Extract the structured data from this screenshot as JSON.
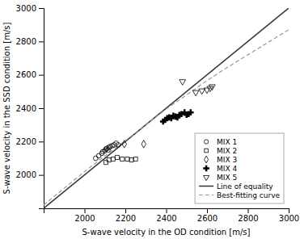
{
  "chart_data": {
    "type": "scatter",
    "xlabel": "S-wave velocity in the OD condition [m/s]",
    "ylabel": "S-wave velocity in the SSD condition [m/s]",
    "xlim": [
      1800,
      3000
    ],
    "ylim": [
      1800,
      3000
    ],
    "xticks": [
      2000,
      2200,
      2400,
      2600,
      2800,
      3000
    ],
    "yticks": [
      2000,
      2200,
      2400,
      2600,
      2800,
      3000
    ],
    "grid": false,
    "legend": "lower right",
    "series": [
      {
        "name": "MIX 1",
        "type": "scatter",
        "marker": "circle",
        "color": "#000000",
        "x": [
          2055,
          2070,
          2085,
          2090,
          2100,
          2105,
          2110,
          2115,
          2120,
          2125,
          2135,
          2145,
          2155,
          2165
        ],
        "values": [
          2100,
          2115,
          2130,
          2140,
          2145,
          2155,
          2160,
          2150,
          2165,
          2170,
          2175,
          2180,
          2190,
          2180
        ]
      },
      {
        "name": "MIX 2",
        "type": "scatter",
        "marker": "square",
        "color": "#000000",
        "x": [
          2105,
          2120,
          2140,
          2160,
          2185,
          2210,
          2230,
          2250
        ],
        "values": [
          2075,
          2090,
          2095,
          2105,
          2095,
          2095,
          2090,
          2095
        ]
      },
      {
        "name": "MIX 3",
        "type": "scatter",
        "marker": "diamond",
        "color": "#000000",
        "x": [
          2195,
          2290
        ],
        "values": [
          2185,
          2185
        ]
      },
      {
        "name": "MIX 4",
        "type": "scatter",
        "marker": "plus",
        "color": "#000000",
        "x": [
          2385,
          2395,
          2405,
          2415,
          2425,
          2435,
          2445,
          2455,
          2465,
          2475,
          2490,
          2500,
          2510,
          2520
        ],
        "values": [
          2320,
          2330,
          2340,
          2345,
          2340,
          2355,
          2350,
          2345,
          2360,
          2365,
          2375,
          2360,
          2365,
          2375
        ]
      },
      {
        "name": "MIX 5",
        "type": "scatter",
        "marker": "triangle-down",
        "color": "#000000",
        "x": [
          2480,
          2545,
          2575,
          2600,
          2615,
          2625
        ],
        "values": [
          2560,
          2495,
          2505,
          2510,
          2520,
          2530
        ]
      },
      {
        "name": "Line of equality",
        "type": "line",
        "line_style": "solid",
        "color": "#333333",
        "x": [
          1800,
          3000
        ],
        "values": [
          1800,
          3000
        ]
      },
      {
        "name": "Best-fitting curve",
        "type": "line",
        "line_style": "dashed",
        "color": "#999999",
        "x": [
          1800,
          2000,
          2100,
          2200,
          2300,
          2400,
          2500,
          2600,
          2700,
          2800,
          2900,
          3000
        ],
        "values": [
          1820,
          2020,
          2115,
          2205,
          2300,
          2395,
          2480,
          2565,
          2645,
          2720,
          2795,
          2870
        ]
      }
    ]
  }
}
